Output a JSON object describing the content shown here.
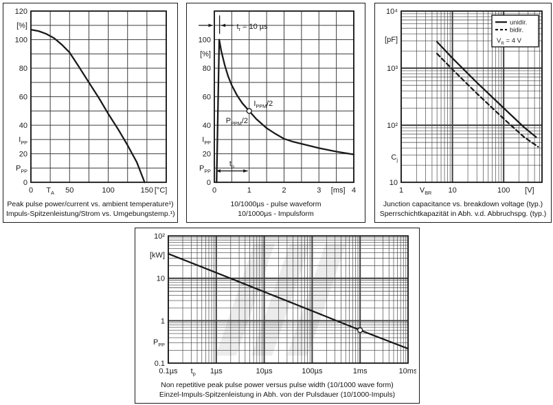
{
  "page": {
    "background": "#ffffff",
    "ink": "#1a1a1a",
    "grid_color": "#3c3c3c",
    "panel_border": "#1a1a1a",
    "watermark_color": "#ececec"
  },
  "chart_data": [
    {
      "id": "temperature-derating",
      "type": "line",
      "x_scale": "linear",
      "y_scale": "linear",
      "x_range": [
        0,
        175
      ],
      "y_range": [
        0,
        120
      ],
      "x_grid_step": 25,
      "y_grid_step": 10,
      "grid": true,
      "x_ticks": [
        {
          "v": 0,
          "t": "0"
        },
        {
          "v": 25,
          "t": "T_{A}"
        },
        {
          "v": 50,
          "t": "50"
        },
        {
          "v": 100,
          "t": "100"
        },
        {
          "v": 150,
          "t": "150"
        },
        {
          "v": 168,
          "t": "[°C]"
        }
      ],
      "y_ticks": [
        {
          "v": 120,
          "t": "120"
        },
        {
          "v": 110,
          "t": "[%]"
        },
        {
          "v": 100,
          "t": "100"
        },
        {
          "v": 80,
          "t": "80"
        },
        {
          "v": 60,
          "t": "60"
        },
        {
          "v": 40,
          "t": "40"
        },
        {
          "v": 30,
          "t": "I_{PP}"
        },
        {
          "v": 20,
          "t": "20"
        },
        {
          "v": 10,
          "t": "P_{PP}"
        },
        {
          "v": 0,
          "t": "0"
        }
      ],
      "series": [
        {
          "name": "derating-curve",
          "style": "solid",
          "points": [
            [
              0,
              107
            ],
            [
              10,
              106
            ],
            [
              20,
              104
            ],
            [
              30,
              101
            ],
            [
              40,
              96.5
            ],
            [
              50,
              91
            ],
            [
              62,
              81
            ],
            [
              75,
              70
            ],
            [
              88,
              59
            ],
            [
              100,
              48
            ],
            [
              113,
              37
            ],
            [
              125,
              26
            ],
            [
              137,
              14
            ],
            [
              147,
              0
            ]
          ]
        }
      ],
      "annotations": [],
      "captions": [
        "Peak pulse power/current vs. ambient temperature¹)",
        "Impuls-Spitzenleistung/Strom vs. Umgebungstemp.¹)"
      ]
    },
    {
      "id": "pulse-waveform",
      "type": "line",
      "x_scale": "linear",
      "y_scale": "linear",
      "x_range": [
        0,
        4
      ],
      "y_range": [
        0,
        120
      ],
      "x_grid_step": 0.5,
      "y_grid_step": 10,
      "grid": true,
      "x_ticks": [
        {
          "v": 0,
          "t": "0"
        },
        {
          "v": 1,
          "t": "1"
        },
        {
          "v": 2,
          "t": "2"
        },
        {
          "v": 3,
          "t": "3"
        },
        {
          "v": 3.55,
          "t": "[ms]"
        },
        {
          "v": 4,
          "t": "4"
        }
      ],
      "y_ticks": [
        {
          "v": 100,
          "t": "100"
        },
        {
          "v": 90,
          "t": "[%]"
        },
        {
          "v": 80,
          "t": "80"
        },
        {
          "v": 60,
          "t": "60"
        },
        {
          "v": 40,
          "t": "40"
        },
        {
          "v": 30,
          "t": "I_{PP}"
        },
        {
          "v": 20,
          "t": "20"
        },
        {
          "v": 10,
          "t": "P_{PP}"
        },
        {
          "v": 0,
          "t": "0"
        }
      ],
      "series": [
        {
          "name": "waveform-curve",
          "style": "solid",
          "points": [
            [
              0.065,
              0
            ],
            [
              0.14,
              100
            ],
            [
              0.2,
              92
            ],
            [
              0.3,
              82
            ],
            [
              0.4,
              74
            ],
            [
              0.5,
              68
            ],
            [
              0.65,
              61
            ],
            [
              0.8,
              55.5
            ],
            [
              1,
              50
            ],
            [
              1.2,
              44.5
            ],
            [
              1.5,
              38
            ],
            [
              1.75,
              34
            ],
            [
              2,
              30.5
            ],
            [
              2.25,
              28.5
            ],
            [
              2.5,
              27
            ],
            [
              2.75,
              25.5
            ],
            [
              3,
              24
            ],
            [
              3.5,
              21.5
            ],
            [
              4,
              19.5
            ]
          ]
        }
      ],
      "annotations": [
        {
          "type": "arrow",
          "x1": -0.45,
          "y1": 110,
          "x2": -0.04,
          "y2": 110,
          "head": "end"
        },
        {
          "type": "line",
          "x1": 0.15,
          "y1": 104,
          "x2": 0.15,
          "y2": 117
        },
        {
          "type": "arrow",
          "x1": 0.55,
          "y1": 110,
          "x2": 0.19,
          "y2": 110,
          "head": "end"
        },
        {
          "type": "text",
          "x": 0.64,
          "y": 107.5,
          "text": "t_{r} = 10 µs",
          "size": 11
        },
        {
          "type": "circle",
          "x": 1,
          "y": 50,
          "r": 3.5
        },
        {
          "type": "text",
          "x": 1.13,
          "y": 53.5,
          "text": "I_{PPM}/2",
          "size": 11
        },
        {
          "type": "text",
          "x": 0.33,
          "y": 41.5,
          "text": "P_{PPM}/2",
          "size": 11
        },
        {
          "type": "arrow",
          "x1": 0.05,
          "y1": 8,
          "x2": 0.96,
          "y2": 8,
          "head": "both"
        },
        {
          "type": "text",
          "x": 0.43,
          "y": 11.5,
          "text": "t_{p}",
          "size": 11
        }
      ],
      "captions": [
        "10/1000µs - pulse waveform",
        "10/1000µs - Impulsform"
      ]
    },
    {
      "id": "junction-capacitance",
      "type": "line",
      "x_scale": "log",
      "y_scale": "log",
      "x_range": [
        1,
        560
      ],
      "y_range": [
        10,
        10000
      ],
      "grid": true,
      "x_ticks": [
        {
          "v": 1,
          "t": "1"
        },
        {
          "v": 3,
          "t": "V_{BR}"
        },
        {
          "v": 10,
          "t": "10"
        },
        {
          "v": 100,
          "t": "100"
        },
        {
          "v": 320,
          "t": "[V]"
        }
      ],
      "y_ticks": [
        {
          "v": 10000,
          "t": "10⁴"
        },
        {
          "v": 3200,
          "t": "[pF]"
        },
        {
          "v": 1000,
          "t": "10³"
        },
        {
          "v": 100,
          "t": "10²"
        },
        {
          "v": 28,
          "t": "C_{j}"
        },
        {
          "v": 10,
          "t": "10"
        }
      ],
      "series": [
        {
          "name": "unidirectional",
          "style": "solid",
          "points": [
            [
              5,
              2900
            ],
            [
              10,
              1500
            ],
            [
              30,
              560
            ],
            [
              100,
              200
            ],
            [
              250,
              92
            ],
            [
              430,
              62
            ]
          ]
        },
        {
          "name": "bidirectional",
          "style": "dashed",
          "points": [
            [
              5,
              1800
            ],
            [
              10,
              950
            ],
            [
              30,
              360
            ],
            [
              100,
              130
            ],
            [
              250,
              62
            ],
            [
              470,
              42
            ]
          ]
        }
      ],
      "legend": {
        "items": [
          {
            "style": "solid",
            "label": "unidir."
          },
          {
            "style": "dashed",
            "label": "bidir."
          }
        ],
        "note": "V_{R} = 4 V"
      },
      "annotations": [],
      "captions": [
        "Junction capacitance vs. breakdown voltage (typ.)",
        "Sperrschichtkapazität in Abh. v.d. Abbruchspg. (typ.)"
      ]
    },
    {
      "id": "peak-pulse-power",
      "type": "line",
      "x_scale": "log",
      "y_scale": "log",
      "x_range": [
        0.1,
        10000
      ],
      "y_range": [
        0.1,
        100
      ],
      "grid": true,
      "watermark": true,
      "x_ticks": [
        {
          "v": 0.1,
          "t": "0.1µs"
        },
        {
          "v": 0.33,
          "t": "t_{p}"
        },
        {
          "v": 1,
          "t": "1µs"
        },
        {
          "v": 10,
          "t": "10µs"
        },
        {
          "v": 100,
          "t": "100µs"
        },
        {
          "v": 1000,
          "t": "1ms"
        },
        {
          "v": 10000,
          "t": "10ms"
        }
      ],
      "y_ticks": [
        {
          "v": 100,
          "t": "10²"
        },
        {
          "v": 36,
          "t": "[kW]"
        },
        {
          "v": 10,
          "t": "10"
        },
        {
          "v": 1,
          "t": "1"
        },
        {
          "v": 0.32,
          "t": "P_{PP}"
        },
        {
          "v": 0.1,
          "t": "0.1"
        }
      ],
      "series": [
        {
          "name": "power-vs-pulse-width",
          "style": "solid",
          "points": [
            [
              0.1,
              38
            ],
            [
              1,
              13.6
            ],
            [
              10,
              4.8
            ],
            [
              100,
              1.7
            ],
            [
              1000,
              0.6
            ],
            [
              10000,
              0.22
            ]
          ]
        }
      ],
      "annotations": [
        {
          "type": "circle",
          "x": 1000,
          "y": 0.6,
          "r": 3.5
        }
      ],
      "captions": [
        "Non repetitive peak pulse power  versus pulse width (10/1000 wave form)",
        "Einzel-Impuls-Spitzenleistung in Abh. von der Pulsdauer  (10/1000-Impuls)"
      ]
    }
  ]
}
